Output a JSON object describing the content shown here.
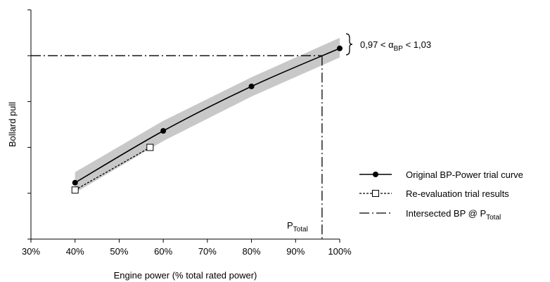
{
  "chart_data": {
    "type": "line",
    "xlabel": "Engine power (% total rated power)",
    "ylabel": "Bollard pull",
    "xlim": [
      30,
      100
    ],
    "x_ticks": [
      "30%",
      "40%",
      "50%",
      "60%",
      "70%",
      "80%",
      "90%",
      "100%"
    ],
    "ylim": [
      0,
      5
    ],
    "y_tick_count": 6,
    "y_tick_labels_shown": false,
    "grid": false,
    "legend_position": "right",
    "series": [
      {
        "name": "Original BP-Power trial curve",
        "style": "solid-circle-markers",
        "color": "#000000",
        "x": [
          40,
          60,
          80,
          100
        ],
        "y": [
          1.23,
          2.36,
          3.33,
          4.16
        ]
      },
      {
        "name": "Re-evaluation trial results",
        "style": "dotted-square-markers",
        "color": "#000000",
        "x": [
          40,
          57
        ],
        "y": [
          1.07,
          2.0
        ]
      },
      {
        "name": "Intersected BP @ P",
        "name_subscript": "Total",
        "style": "dash-dot",
        "color": "#000000",
        "x_intersect": 96,
        "y_intersect": 4.0
      }
    ],
    "tolerance_band": {
      "color": "#c8c8c8",
      "x": [
        40,
        60,
        80,
        100
      ],
      "y_low": [
        1.01,
        2.14,
        3.11,
        3.96
      ],
      "y_high": [
        1.46,
        2.58,
        3.53,
        4.39
      ],
      "annotation": {
        "prefix": "0,97 < ",
        "symbol": "α",
        "subscript": "BP",
        "suffix": " < 1,03"
      }
    },
    "annotations": [
      {
        "text": "P",
        "subscript": "Total"
      }
    ]
  }
}
